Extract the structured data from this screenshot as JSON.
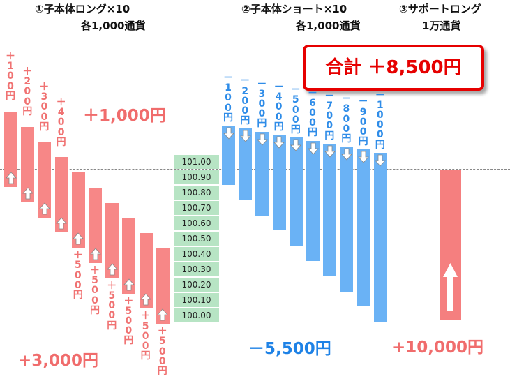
{
  "headers": {
    "long_title": "①子本体ロング×10",
    "long_sub": "各1,000通貨",
    "short_title": "②子本体ショート×10",
    "short_sub": "各1,000通貨",
    "support_title": "③サポートロング",
    "support_sub": "1万通貨"
  },
  "total": "合計 ＋8,500円",
  "price_ticks": [
    "101.00",
    "100.90",
    "100.80",
    "100.70",
    "100.60",
    "100.50",
    "100.40",
    "100.30",
    "100.20",
    "100.10",
    "100.00"
  ],
  "long_top_labels": [
    "＋100円",
    "＋200円",
    "＋300円",
    "＋400円"
  ],
  "long_bottom_labels": [
    "＋500円",
    "＋500円",
    "＋500円",
    "＋500円",
    "＋500円",
    "＋500円"
  ],
  "short_labels": [
    "－100円",
    "－200円",
    "－300円",
    "－400円",
    "－500円",
    "－600円",
    "－700円",
    "－800円",
    "－900円",
    "－1000円"
  ],
  "totals": {
    "long_upper": "＋1,000円",
    "long_lower": "+3,000円",
    "short": "－5,500円",
    "support": "+10,000円"
  },
  "colors": {
    "long": "#f78787",
    "short": "#6ab2f5",
    "support": "#f57f7f",
    "accent_red": "#e60000",
    "price_box": "#b7e4c4"
  }
}
